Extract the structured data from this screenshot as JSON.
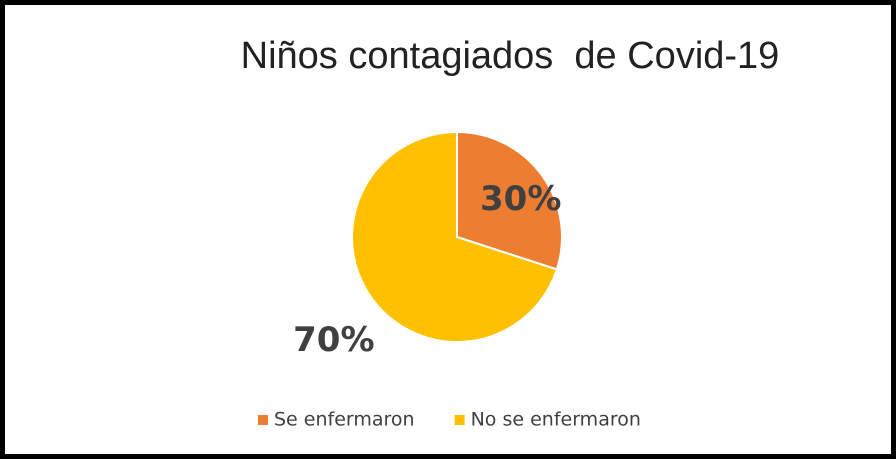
{
  "chart_data": {
    "type": "pie",
    "title": "Niños contagiados  de Covid-19",
    "categories": [
      "Se enfermaron",
      "No se enfermaron"
    ],
    "values": [
      30,
      70
    ],
    "value_labels": [
      "30%",
      "70%"
    ],
    "colors": [
      "#ED7D31",
      "#FFC000"
    ],
    "legend": "bottom"
  }
}
